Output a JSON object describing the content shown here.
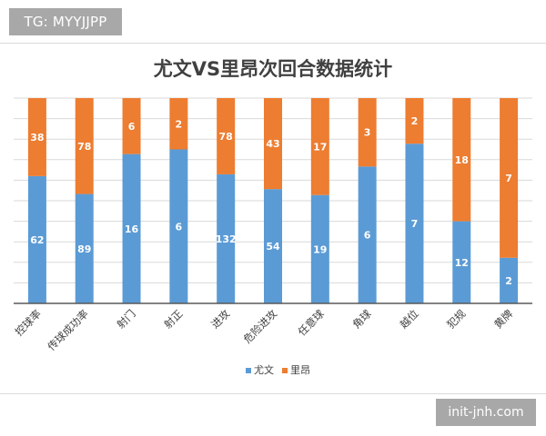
{
  "watermark_top": "TG: MYYJJPP",
  "watermark_bottom": "init-jnh.com",
  "colors": {
    "series1": "#5b9bd5",
    "series2": "#ed7d31",
    "gridline": "#d9d9d9",
    "axis": "#595959",
    "label_text": "#ffffff",
    "title_text": "#404040"
  },
  "chart_data": {
    "type": "bar",
    "stacking": "percent",
    "title": "尤文VS里昂次回合数据统计",
    "categories": [
      "控球率",
      "传球成功率",
      "射门",
      "射正",
      "进攻",
      "危险进攻",
      "任意球",
      "角球",
      "越位",
      "犯规",
      "黄牌"
    ],
    "series": [
      {
        "name": "尤文",
        "values": [
          62,
          89,
          16,
          6,
          132,
          54,
          19,
          6,
          7,
          12,
          2
        ]
      },
      {
        "name": "里昂",
        "values": [
          38,
          78,
          6,
          2,
          78,
          43,
          17,
          3,
          2,
          18,
          7
        ]
      }
    ],
    "grid": true,
    "legend_position": "bottom",
    "data_labels": true
  }
}
